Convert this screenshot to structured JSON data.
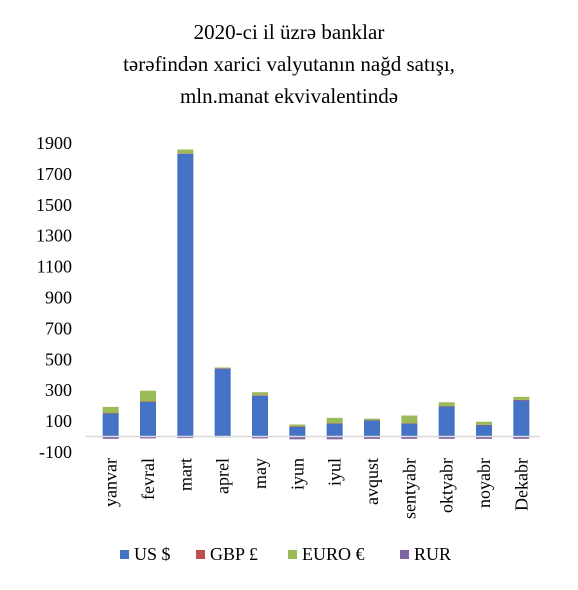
{
  "chart_data": {
    "type": "bar",
    "stacked": true,
    "title_lines": [
      "2020-ci il üzrə banklar",
      "tərəfindən xarici valyutanın nağd satışı,",
      "mln.manat ekvivalentində"
    ],
    "categories": [
      "yanvar",
      "fevral",
      "mart",
      "aprel",
      "may",
      "iyun",
      "iyul",
      "avqust",
      "sentyabr",
      "oktyabr",
      "noyabr",
      "Dekabr"
    ],
    "series": [
      {
        "name": "US $",
        "color": "#4472C4",
        "values": [
          150,
          225,
          1830,
          440,
          265,
          65,
          85,
          105,
          85,
          195,
          75,
          235
        ]
      },
      {
        "name": "GBP £",
        "color": "#C0504D",
        "values": [
          2,
          2,
          3,
          2,
          2,
          1,
          1,
          1,
          1,
          2,
          1,
          2
        ]
      },
      {
        "name": "EURO €",
        "color": "#9BBB59",
        "values": [
          40,
          70,
          25,
          5,
          20,
          12,
          35,
          10,
          50,
          25,
          20,
          20
        ]
      },
      {
        "name": "RUR",
        "color": "#8064A2",
        "values": [
          -15,
          -12,
          -10,
          -5,
          -12,
          -18,
          -18,
          -15,
          -15,
          -15,
          -15,
          -15
        ]
      }
    ],
    "yticks": [
      1900,
      1700,
      1500,
      1300,
      1100,
      900,
      700,
      500,
      300,
      100,
      -100
    ],
    "ylim": [
      -100,
      1900
    ],
    "grid": false,
    "legend_position": "bottom"
  }
}
